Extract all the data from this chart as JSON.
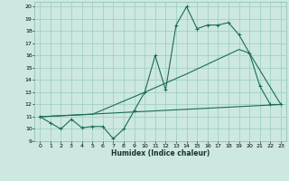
{
  "title": "",
  "xlabel": "Humidex (Indice chaleur)",
  "xlim": [
    -0.5,
    23.5
  ],
  "ylim": [
    9,
    20.4
  ],
  "yticks": [
    9,
    10,
    11,
    12,
    13,
    14,
    15,
    16,
    17,
    18,
    19,
    20
  ],
  "xticks": [
    0,
    1,
    2,
    3,
    4,
    5,
    6,
    7,
    8,
    9,
    10,
    11,
    12,
    13,
    14,
    15,
    16,
    17,
    18,
    19,
    20,
    21,
    22,
    23
  ],
  "background_color": "#cce8e0",
  "grid_color": "#99ccc0",
  "line_color": "#1a6b5a",
  "line1_y": [
    11.0,
    10.5,
    10.0,
    10.8,
    10.1,
    10.2,
    10.2,
    9.2,
    10.0,
    11.5,
    13.0,
    16.0,
    13.2,
    18.5,
    20.0,
    18.2,
    18.5,
    18.5,
    18.7,
    17.7,
    16.2,
    13.5,
    12.0,
    12.0
  ],
  "line2_x": [
    0,
    23
  ],
  "line2_y": [
    11.0,
    12.0
  ],
  "line3_x": [
    0,
    5,
    10,
    14,
    19,
    20,
    23
  ],
  "line3_y": [
    11.0,
    11.2,
    13.0,
    14.5,
    16.5,
    16.2,
    12.0
  ]
}
